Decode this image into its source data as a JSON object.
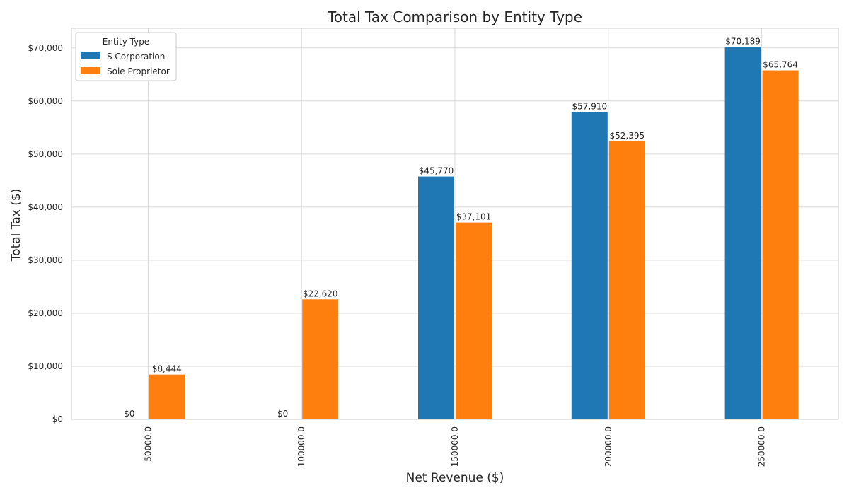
{
  "chart_data": {
    "type": "bar",
    "title": "Total Tax Comparison by Entity Type",
    "xlabel": "Net Revenue ($)",
    "ylabel": "Total Tax ($)",
    "categories": [
      "50000.0",
      "100000.0",
      "150000.0",
      "200000.0",
      "250000.0"
    ],
    "ylim": [
      0,
      73700
    ],
    "yticks": [
      0,
      10000,
      20000,
      30000,
      40000,
      50000,
      60000,
      70000
    ],
    "ytick_labels": [
      "$0",
      "$10,000",
      "$20,000",
      "$30,000",
      "$40,000",
      "$50,000",
      "$60,000",
      "$70,000"
    ],
    "grid": true,
    "legend": {
      "title": "Entity Type",
      "placement": "top-left"
    },
    "series": [
      {
        "name": "S Corporation",
        "color": "#1f77b4",
        "values": [
          0,
          0,
          45770,
          57910,
          70189
        ],
        "labels": [
          "$0",
          "$0",
          "$45,770",
          "$57,910",
          "$70,189"
        ]
      },
      {
        "name": "Sole Proprietor",
        "color": "#ff7f0e",
        "values": [
          8444,
          22620,
          37101,
          52395,
          65764
        ],
        "labels": [
          "$8,444",
          "$22,620",
          "$37,101",
          "$52,395",
          "$65,764"
        ]
      }
    ]
  }
}
